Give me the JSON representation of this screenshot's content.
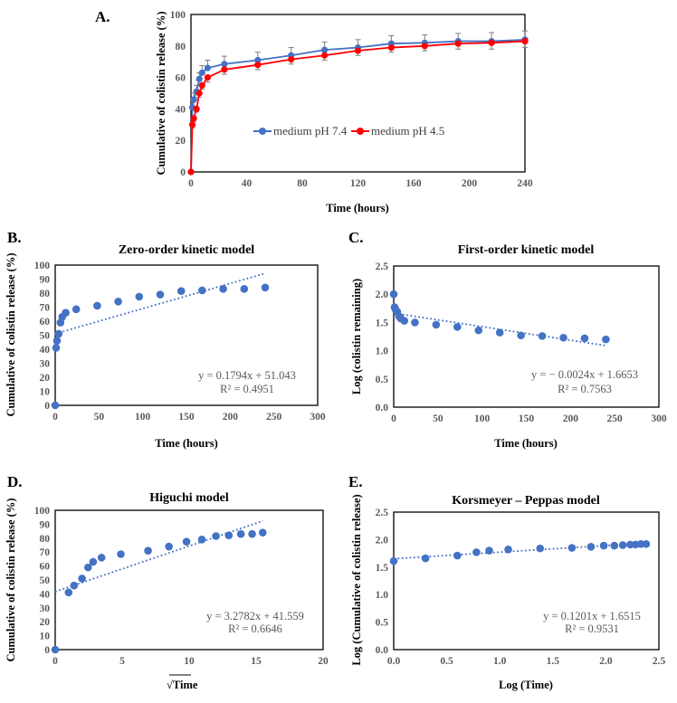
{
  "colors": {
    "blue": "#4472C4",
    "red": "#FF0000",
    "axis": "#000000",
    "tick_text": "#595959"
  },
  "chart_data": [
    {
      "panel_label": "A.",
      "type": "line",
      "title": "",
      "xlabel": "Time (hours)",
      "ylabel": "Cumulative of colistin release (%)",
      "xlim": [
        0,
        240
      ],
      "ylim": [
        0,
        100
      ],
      "xticks": [
        0,
        40,
        80,
        120,
        160,
        200,
        240
      ],
      "yticks": [
        0,
        20,
        40,
        60,
        80,
        100
      ],
      "grid": false,
      "legend": "center",
      "x": [
        0,
        1,
        2,
        4,
        6,
        8,
        12,
        24,
        48,
        72,
        96,
        120,
        144,
        168,
        192,
        216,
        240
      ],
      "series": [
        {
          "name": "medium pH 7.4",
          "color": "#4472C4",
          "values": [
            0,
            41,
            46,
            51,
            59,
            63,
            66,
            68.5,
            71,
            74,
            77.5,
            79,
            81.5,
            82,
            83,
            83,
            84
          ],
          "error": [
            0,
            3,
            4,
            4,
            4,
            4.5,
            5,
            5,
            5,
            5,
            5,
            5,
            5,
            5,
            5,
            5.5,
            5.5
          ]
        },
        {
          "name": "medium pH 4.5",
          "color": "#FF0000",
          "values": [
            0,
            30,
            34,
            40,
            50,
            55,
            60,
            65,
            68,
            71.5,
            74,
            77,
            79,
            80,
            81.5,
            82,
            83
          ],
          "error": [
            0,
            2,
            2,
            2,
            2.5,
            2.5,
            3,
            3,
            3,
            3,
            3,
            3,
            3,
            3,
            3.5,
            4,
            4
          ]
        }
      ]
    },
    {
      "panel_label": "B.",
      "type": "scatter",
      "title": "Zero-order kinetic model",
      "xlabel": "Time (hours)",
      "ylabel": "Cumulative of colistin release (%)",
      "xlim": [
        0,
        300
      ],
      "ylim": [
        0,
        100
      ],
      "xticks": [
        0,
        50,
        100,
        150,
        200,
        250,
        300
      ],
      "yticks": [
        0,
        10,
        20,
        30,
        40,
        50,
        60,
        70,
        80,
        90,
        100
      ],
      "x": [
        0,
        1,
        2,
        4,
        6,
        8,
        12,
        24,
        48,
        72,
        96,
        120,
        144,
        168,
        192,
        216,
        240
      ],
      "y": [
        0,
        41,
        46,
        51,
        59,
        63,
        66,
        68.5,
        71,
        74,
        77.5,
        79,
        81.5,
        82,
        83,
        83,
        84
      ],
      "trendline": {
        "slope": 0.1794,
        "intercept": 51.043,
        "x_range": [
          0,
          240
        ]
      },
      "equation": "y = 0.1794x + 51.043",
      "r2": "R² = 0.4951"
    },
    {
      "panel_label": "C.",
      "type": "scatter",
      "title": "First-order kinetic model",
      "xlabel": "Time (hours)",
      "ylabel": "Log (colistin remaining)",
      "xlim": [
        0,
        300
      ],
      "ylim": [
        0,
        2.5
      ],
      "xticks": [
        0,
        50,
        100,
        150,
        200,
        250,
        300
      ],
      "yticks": [
        "0.0",
        "0.5",
        "1.0",
        "1.5",
        "2.0",
        "2.5"
      ],
      "x": [
        0,
        1,
        2,
        4,
        6,
        8,
        12,
        24,
        48,
        72,
        96,
        120,
        144,
        168,
        192,
        216,
        240
      ],
      "y": [
        2.0,
        1.77,
        1.73,
        1.69,
        1.61,
        1.57,
        1.53,
        1.5,
        1.46,
        1.42,
        1.36,
        1.32,
        1.27,
        1.26,
        1.23,
        1.22,
        1.2
      ],
      "trendline": {
        "slope": -0.0024,
        "intercept": 1.6653,
        "x_range": [
          10,
          240
        ]
      },
      "equation": "y = − 0.0024x + 1.6653",
      "r2": "R² = 0.7563"
    },
    {
      "panel_label": "D.",
      "type": "scatter",
      "title": "Higuchi model",
      "xlabel": "√Time",
      "ylabel": "Cumulative of colistin release (%)",
      "xlim": [
        0,
        20
      ],
      "ylim": [
        0,
        100
      ],
      "xticks": [
        0,
        5,
        10,
        15,
        20
      ],
      "yticks": [
        0,
        10,
        20,
        30,
        40,
        50,
        60,
        70,
        80,
        90,
        100
      ],
      "x": [
        0,
        1,
        1.41,
        2,
        2.45,
        2.83,
        3.46,
        4.9,
        6.93,
        8.49,
        9.8,
        10.95,
        12,
        12.96,
        13.86,
        14.7,
        15.49
      ],
      "y": [
        0,
        41,
        46,
        51,
        59,
        63,
        66,
        68.5,
        71,
        74,
        77.5,
        79,
        81.5,
        82,
        83,
        83,
        84
      ],
      "trendline": {
        "slope": 3.2782,
        "intercept": 41.559,
        "x_range": [
          0,
          15.5
        ]
      },
      "equation": "y = 3.2782x + 41.559",
      "r2": "R² = 0.6646"
    },
    {
      "panel_label": "E.",
      "type": "scatter",
      "title": "Korsmeyer – Peppas model",
      "xlabel": "Log (Time)",
      "ylabel": "Log (Cumulative of colistin release)",
      "xlim": [
        0,
        2.5
      ],
      "ylim": [
        0,
        2.5
      ],
      "xticks": [
        "0.0",
        "0.5",
        "1.0",
        "1.5",
        "2.0",
        "2.5"
      ],
      "yticks": [
        "0.0",
        "0.5",
        "1.0",
        "1.5",
        "2.0",
        "2.5"
      ],
      "x": [
        0,
        0.3,
        0.6,
        0.78,
        0.9,
        1.08,
        1.38,
        1.68,
        1.86,
        1.98,
        2.08,
        2.16,
        2.23,
        2.28,
        2.33,
        2.38
      ],
      "y": [
        1.61,
        1.66,
        1.71,
        1.77,
        1.8,
        1.82,
        1.84,
        1.85,
        1.87,
        1.89,
        1.89,
        1.9,
        1.91,
        1.91,
        1.92,
        1.92
      ],
      "trendline": {
        "slope": 0.1201,
        "intercept": 1.6515,
        "x_range": [
          0,
          2.38
        ]
      },
      "equation": "y = 0.1201x + 1.6515",
      "r2": "R² = 0.9531"
    }
  ]
}
